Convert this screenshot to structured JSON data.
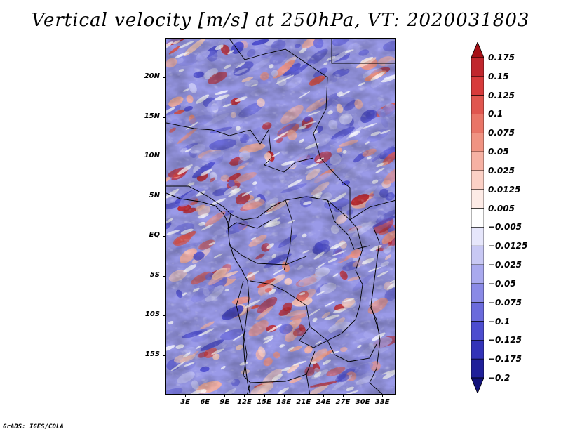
{
  "title": "Vertical velocity [m/s] at 250hPa, VT: 2020031803",
  "map": {
    "type": "heatmap",
    "variable": "Vertical velocity",
    "units": "m/s",
    "level": "250hPa",
    "valid_time": "2020031803",
    "lon_range": [
      0,
      35
    ],
    "lat_range": [
      -20,
      25
    ],
    "lat_ticks": [
      {
        "value": 20,
        "label": "20N"
      },
      {
        "value": 15,
        "label": "15N"
      },
      {
        "value": 10,
        "label": "10N"
      },
      {
        "value": 5,
        "label": "5N"
      },
      {
        "value": 0,
        "label": "EQ"
      },
      {
        "value": -5,
        "label": "5S"
      },
      {
        "value": -10,
        "label": "10S"
      },
      {
        "value": -15,
        "label": "15S"
      }
    ],
    "lon_ticks": [
      {
        "value": 3,
        "label": "3E"
      },
      {
        "value": 6,
        "label": "6E"
      },
      {
        "value": 9,
        "label": "9E"
      },
      {
        "value": 12,
        "label": "12E"
      },
      {
        "value": 15,
        "label": "15E"
      },
      {
        "value": 18,
        "label": "18E"
      },
      {
        "value": 21,
        "label": "21E"
      },
      {
        "value": 24,
        "label": "24E"
      },
      {
        "value": 27,
        "label": "27E"
      },
      {
        "value": 30,
        "label": "30E"
      },
      {
        "value": 33,
        "label": "33E"
      }
    ]
  },
  "chart_data": {
    "type": "heatmap",
    "title": "Vertical velocity [m/s] at 250hPa, VT: 2020031803",
    "colorbar": {
      "levels": [
        "0.175",
        "0.15",
        "0.125",
        "0.1",
        "0.075",
        "0.05",
        "0.025",
        "0.0125",
        "0.005",
        "−0.005",
        "−0.0125",
        "−0.025",
        "−0.05",
        "−0.075",
        "−0.1",
        "−0.125",
        "−0.175",
        "−0.2"
      ],
      "colors": [
        "#a50f15",
        "#c0272d",
        "#d73b3b",
        "#e0564f",
        "#e97567",
        "#f09382",
        "#f6b1a3",
        "#fbd0c5",
        "#fdebe6",
        "#ffffff",
        "#e6e6fb",
        "#c8c8f4",
        "#a9a9ee",
        "#8a8ae6",
        "#6b6bdc",
        "#4d4dcf",
        "#3333b8",
        "#1f1f99",
        "#12127a"
      ]
    }
  },
  "footer": "GrADS: IGES/COLA"
}
